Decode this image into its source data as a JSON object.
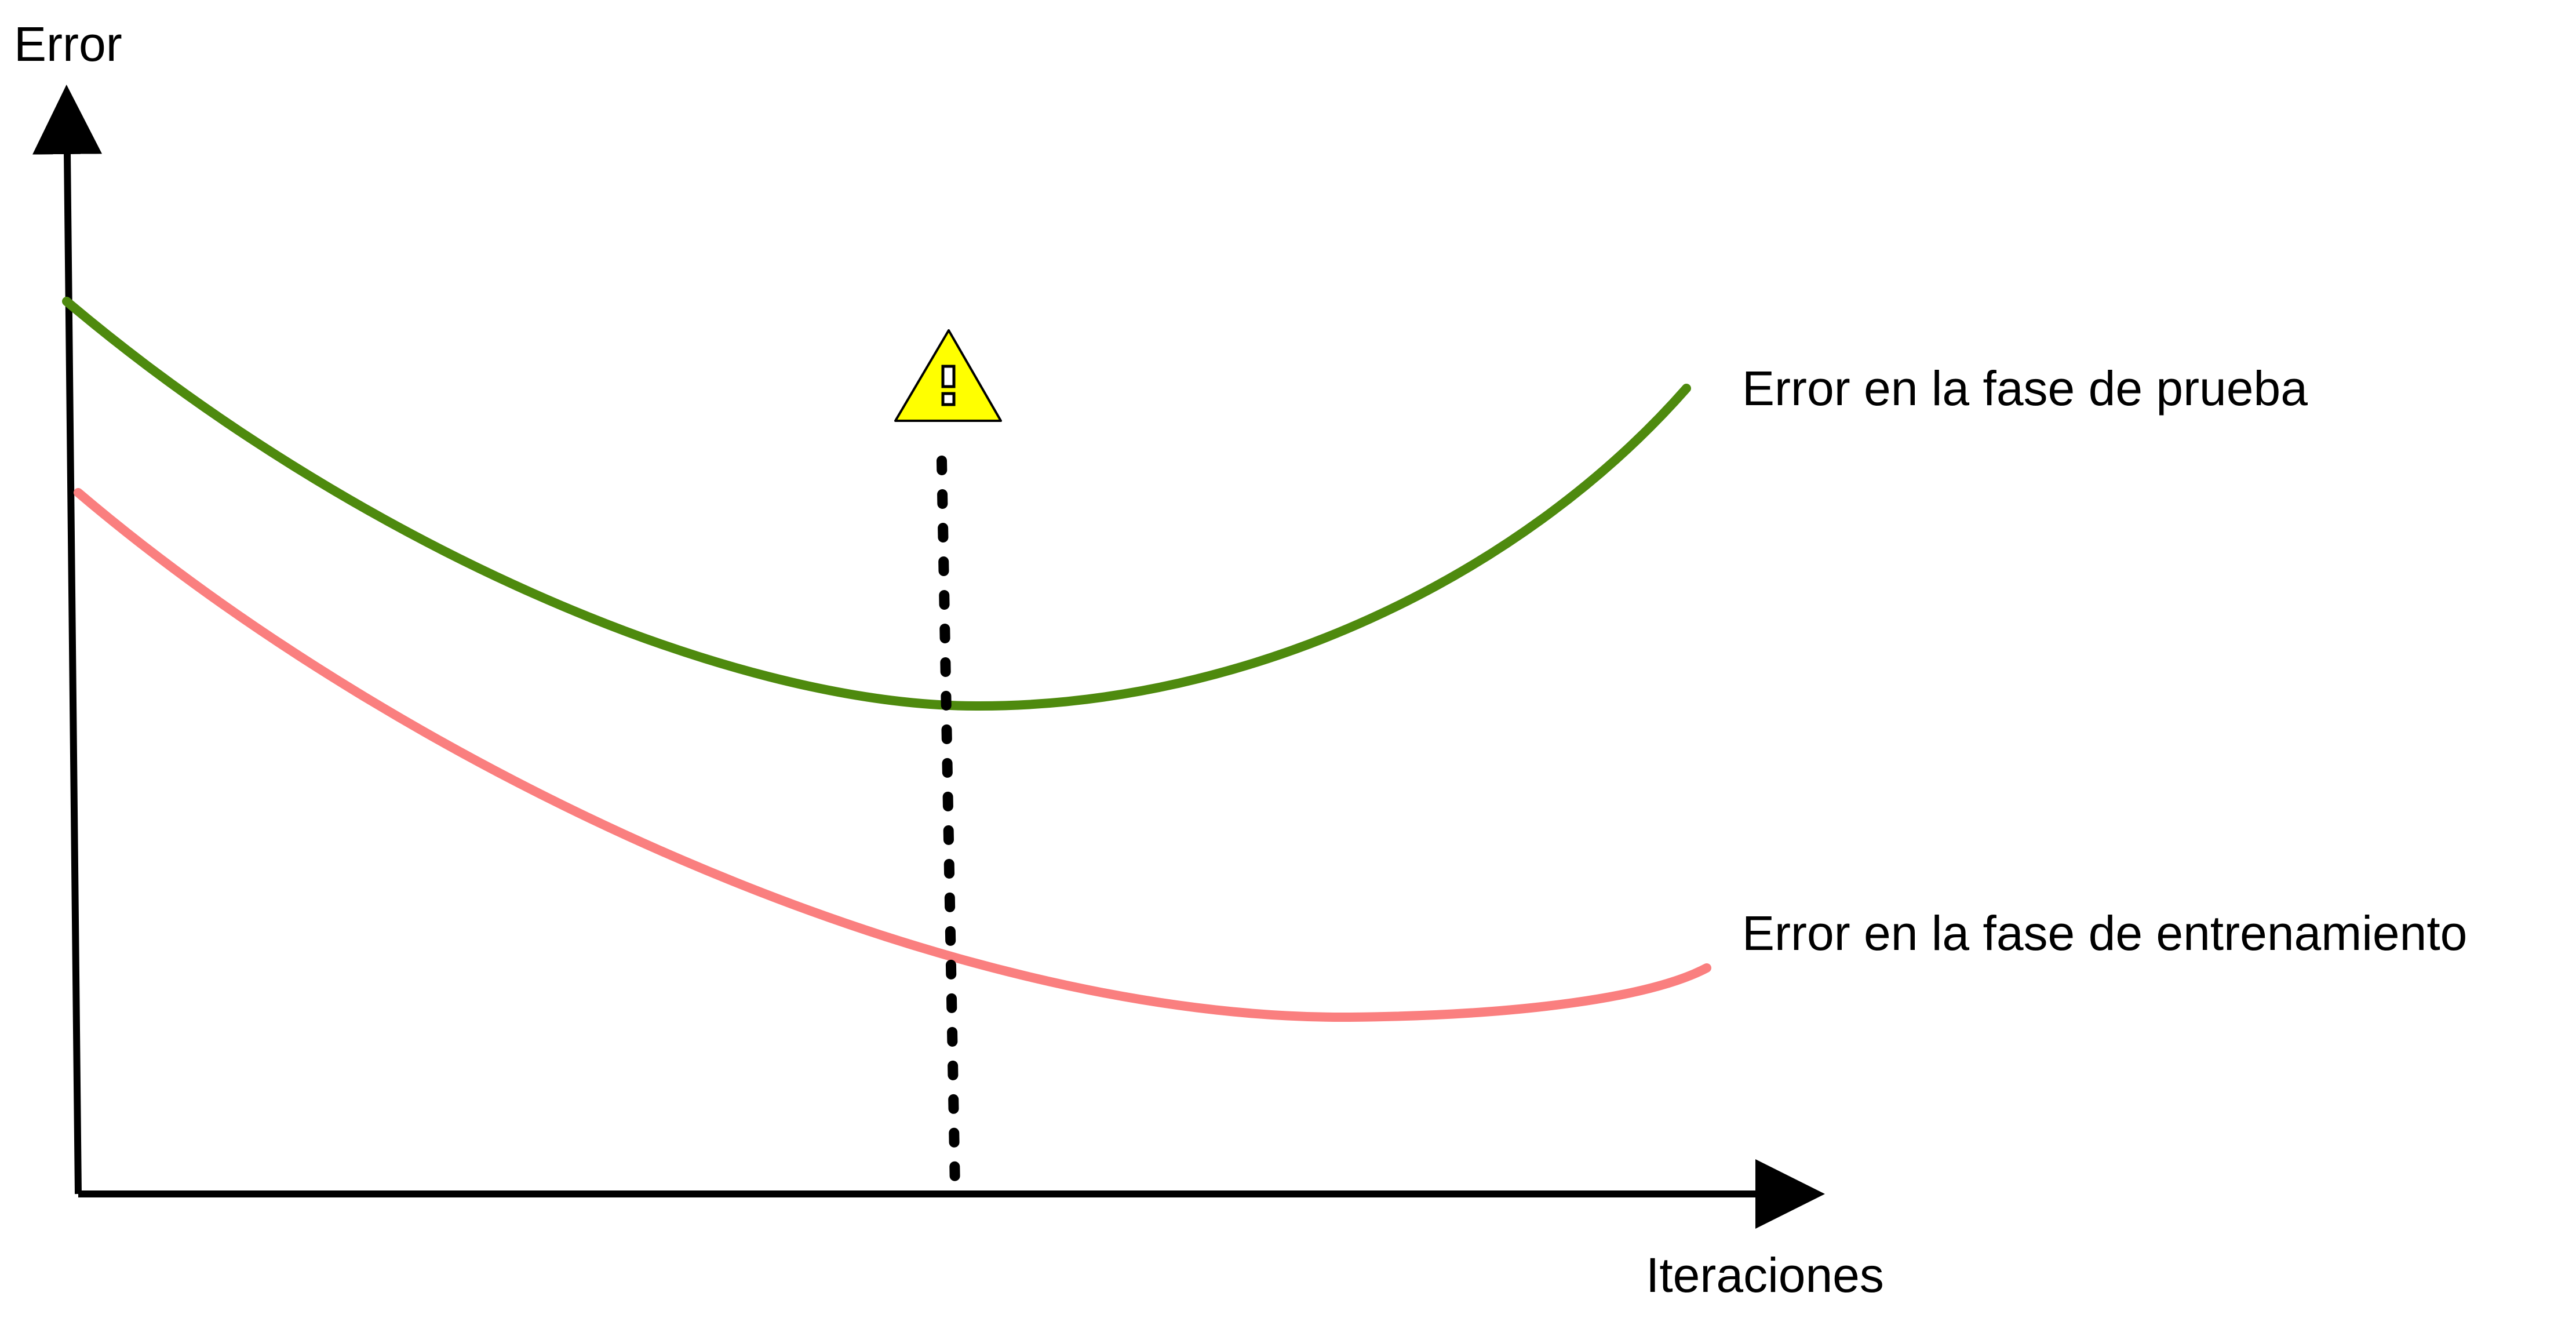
{
  "axes": {
    "y_label": "Error",
    "x_label": "Iteraciones"
  },
  "curves": {
    "test": {
      "label": "Error en la fase de prueba",
      "color": "#4e8a0e",
      "shape": "U-shaped: decreases to a minimum near the marker, then rises"
    },
    "train": {
      "label": "Error en la fase de entrenamiento",
      "color": "#fa7f7f",
      "shape": "monotonically decreasing, flattening out"
    }
  },
  "marker": {
    "icon": "warning-triangle-icon",
    "line_style": "dotted",
    "color": "#ffff00"
  },
  "axis_color": "#000000"
}
